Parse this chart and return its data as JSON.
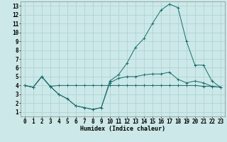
{
  "xlabel": "Humidex (Indice chaleur)",
  "bg_color": "#cce8e8",
  "line_color": "#1a6b6b",
  "xlim": [
    -0.5,
    23.5
  ],
  "ylim": [
    0.5,
    13.5
  ],
  "xticks": [
    0,
    1,
    2,
    3,
    4,
    5,
    6,
    7,
    8,
    9,
    10,
    11,
    12,
    13,
    14,
    15,
    16,
    17,
    18,
    19,
    20,
    21,
    22,
    23
  ],
  "yticks": [
    1,
    2,
    3,
    4,
    5,
    6,
    7,
    8,
    9,
    10,
    11,
    12,
    13
  ],
  "line1_x": [
    0,
    1,
    2,
    3,
    4,
    5,
    6,
    7,
    8,
    9,
    10,
    11,
    12,
    13,
    14,
    15,
    16,
    17,
    18,
    19,
    20,
    21,
    22,
    23
  ],
  "line1_y": [
    4.0,
    3.8,
    5.0,
    3.9,
    4.0,
    4.0,
    4.0,
    4.0,
    4.0,
    4.0,
    4.0,
    4.0,
    4.0,
    4.0,
    4.0,
    4.0,
    4.0,
    4.0,
    4.0,
    4.0,
    4.0,
    3.9,
    3.9,
    3.8
  ],
  "line2_x": [
    0,
    1,
    2,
    3,
    4,
    5,
    6,
    7,
    8,
    9,
    10,
    11,
    12,
    13,
    14,
    15,
    16,
    17,
    18,
    19,
    20,
    21,
    22,
    23
  ],
  "line2_y": [
    4.0,
    3.8,
    5.0,
    3.9,
    3.0,
    2.5,
    1.7,
    1.5,
    1.3,
    1.5,
    4.5,
    5.2,
    6.5,
    8.3,
    9.3,
    11.0,
    12.5,
    13.2,
    12.8,
    9.0,
    6.3,
    6.3,
    4.5,
    3.8
  ],
  "line3_x": [
    0,
    1,
    2,
    3,
    4,
    5,
    6,
    7,
    8,
    9,
    10,
    11,
    12,
    13,
    14,
    15,
    16,
    17,
    18,
    19,
    20,
    21,
    22,
    23
  ],
  "line3_y": [
    4.0,
    3.8,
    5.0,
    3.9,
    3.0,
    2.5,
    1.7,
    1.5,
    1.3,
    1.5,
    4.3,
    4.8,
    5.0,
    5.0,
    5.2,
    5.3,
    5.3,
    5.5,
    4.7,
    4.3,
    4.5,
    4.3,
    3.9,
    3.8
  ],
  "grid_color": "#aad0d0",
  "font_size_label": 6,
  "font_size_tick": 5.5
}
